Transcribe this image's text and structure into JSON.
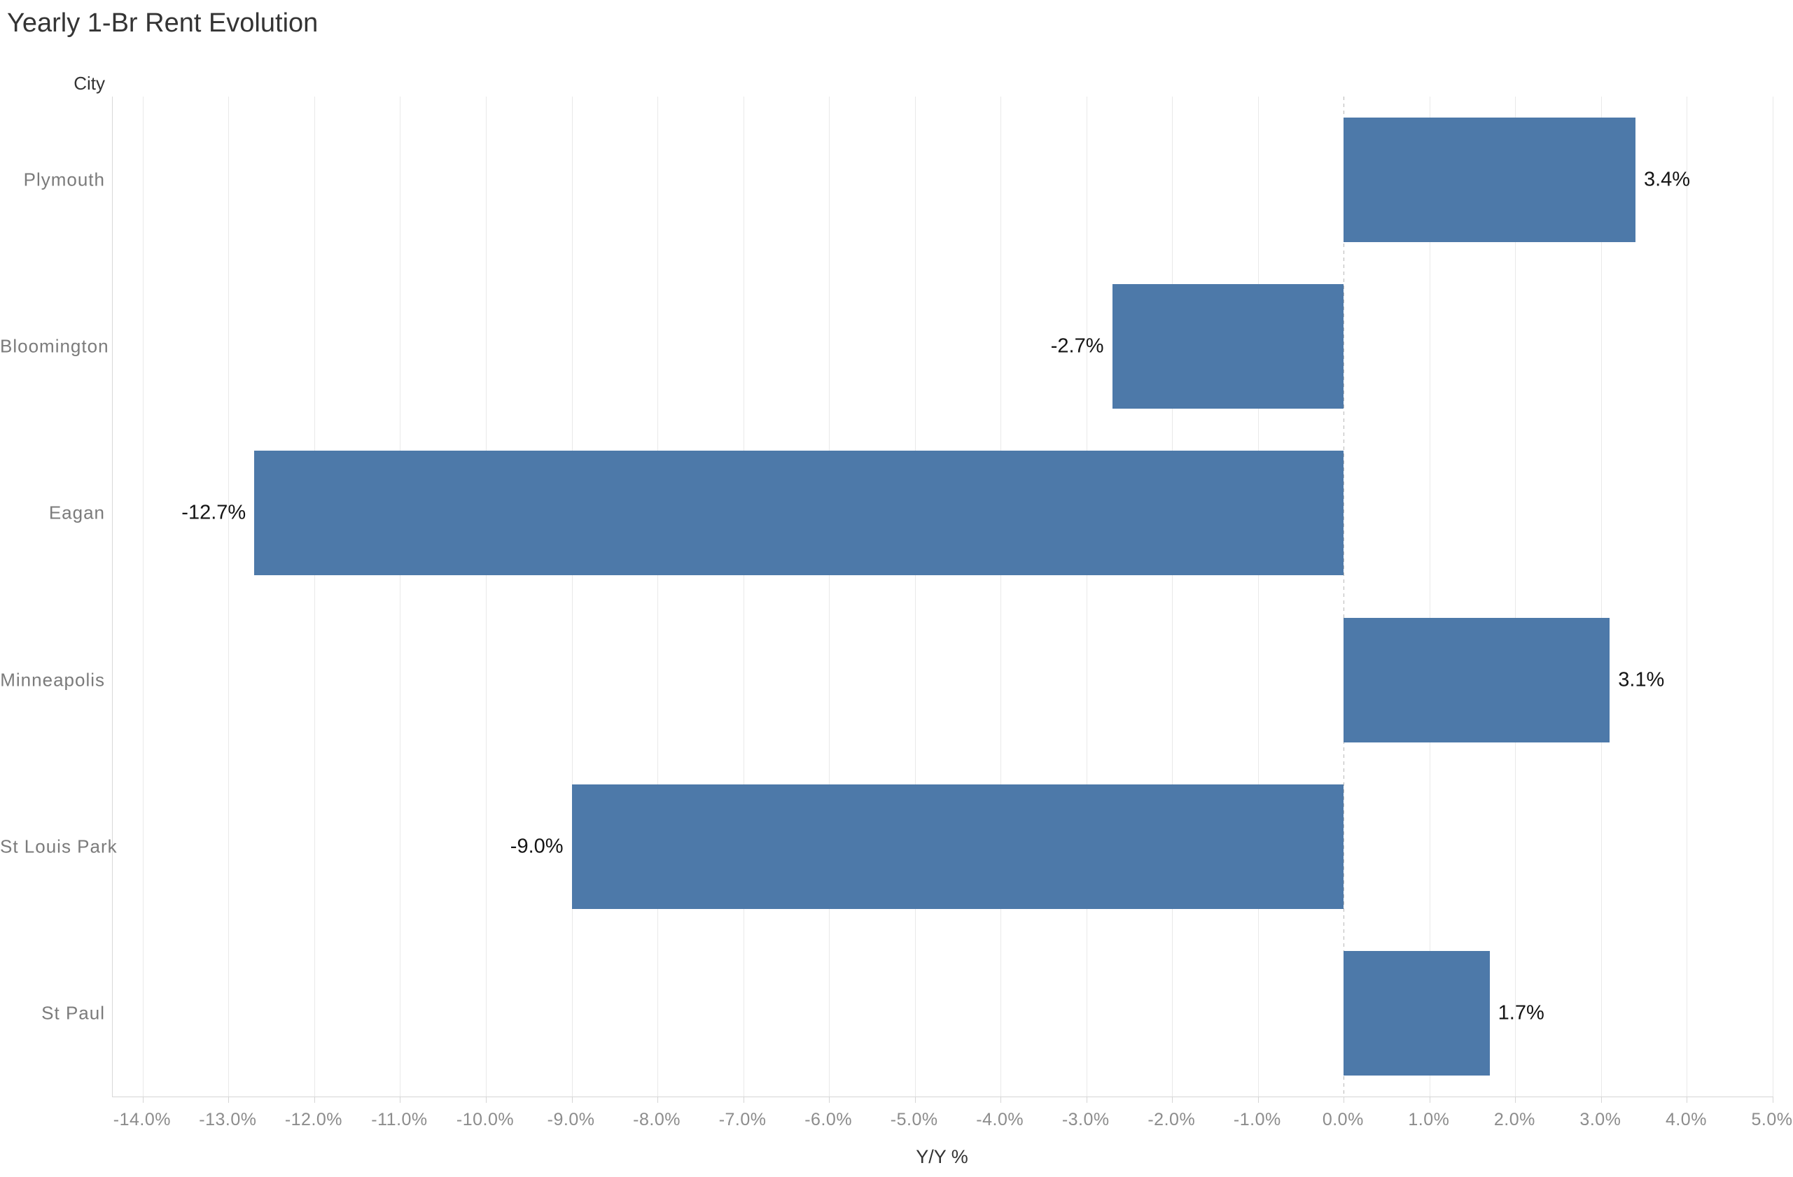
{
  "title": "Yearly 1-Br Rent Evolution",
  "chart_data": {
    "type": "bar",
    "orientation": "horizontal",
    "title": "Yearly 1-Br Rent Evolution",
    "xlabel": "Y/Y %",
    "ylabel": "City",
    "categories": [
      "Plymouth",
      "Bloomington",
      "Eagan",
      "Minneapolis",
      "St Louis Park",
      "St Paul"
    ],
    "values": [
      3.4,
      -2.7,
      -12.7,
      3.1,
      -9.0,
      1.7
    ],
    "value_labels": [
      "3.4%",
      "-2.7%",
      "-12.7%",
      "3.1%",
      "-9.0%",
      "1.7%"
    ],
    "xlim": [
      -14.35,
      5.0
    ],
    "x_tick_values": [
      -14,
      -13,
      -12,
      -11,
      -10,
      -9,
      -8,
      -7,
      -6,
      -5,
      -4,
      -3,
      -2,
      -1,
      0,
      1,
      2,
      3,
      4,
      5
    ],
    "x_tick_labels": [
      "-14.0%",
      "-13.0%",
      "-12.0%",
      "-11.0%",
      "-10.0%",
      "-9.0%",
      "-8.0%",
      "-7.0%",
      "-6.0%",
      "-5.0%",
      "-4.0%",
      "-3.0%",
      "-2.0%",
      "-1.0%",
      "0.0%",
      "1.0%",
      "2.0%",
      "3.0%",
      "4.0%",
      "5.0%"
    ],
    "grid": "vertical-on",
    "zero_line": "dashed",
    "legend": "none",
    "colors": {
      "bar": "#4d79a9",
      "gridline": "#e9e9e9",
      "zero_line": "#b7b7b7",
      "category_label": "#7b7b7b",
      "tick_label": "#8c8c8c",
      "value_label": "#141414",
      "title": "#343434"
    }
  }
}
